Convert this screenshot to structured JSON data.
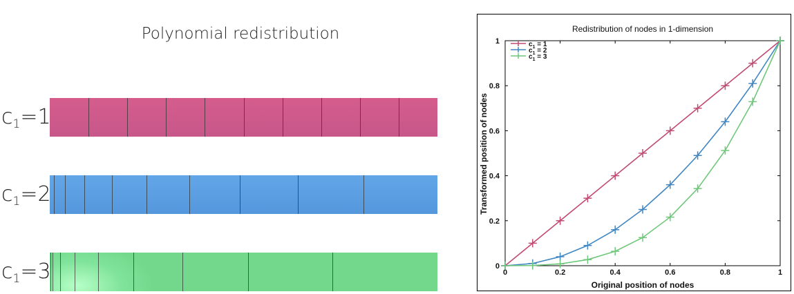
{
  "left": {
    "title": "Polynomial redistribution",
    "bars": [
      {
        "prefix": "c",
        "sub": "1",
        "suffix": "=1",
        "color": "#cb5a8b",
        "positions": [
          0,
          0.1,
          0.2,
          0.3,
          0.4,
          0.5,
          0.6,
          0.7,
          0.8,
          0.9,
          1
        ]
      },
      {
        "prefix": "c",
        "sub": "1",
        "suffix": "=2",
        "color": "#5b9fe2",
        "positions": [
          0,
          0.01,
          0.04,
          0.09,
          0.16,
          0.25,
          0.36,
          0.49,
          0.64,
          0.81,
          1
        ]
      },
      {
        "prefix": "c",
        "sub": "1",
        "suffix": "=3",
        "color": "#7ddf96",
        "positions": [
          0,
          0.001,
          0.008,
          0.027,
          0.064,
          0.125,
          0.216,
          0.343,
          0.512,
          0.729,
          1
        ]
      }
    ]
  },
  "chart_data": {
    "type": "line",
    "title": "Redistribution of nodes in 1-dimension",
    "xlabel": "Original position of  nodes",
    "ylabel": "Transformed position of nodes",
    "xlim": [
      0,
      1
    ],
    "ylim": [
      0,
      1
    ],
    "xticks": [
      "0",
      "0.2",
      "0.4",
      "0.6",
      "0.8",
      "1"
    ],
    "yticks": [
      "0",
      "0.2",
      "0.4",
      "0.6",
      "0.8",
      "1"
    ],
    "legend_position": "top-left",
    "grid": false,
    "x": [
      0,
      0.1,
      0.2,
      0.3,
      0.4,
      0.5,
      0.6,
      0.7,
      0.8,
      0.9,
      1
    ],
    "series": [
      {
        "name": "c1 = 1",
        "legend_prefix": "c",
        "legend_sub": "1",
        "legend_suffix": " = 1",
        "color": "#c04a73",
        "values": [
          0,
          0.1,
          0.2,
          0.3,
          0.4,
          0.5,
          0.6,
          0.7,
          0.8,
          0.9,
          1
        ]
      },
      {
        "name": "c1 = 2",
        "legend_prefix": "c",
        "legend_sub": "1",
        "legend_suffix": " = 2",
        "color": "#3f86c2",
        "values": [
          0,
          0.01,
          0.04,
          0.09,
          0.16,
          0.25,
          0.36,
          0.49,
          0.64,
          0.81,
          1
        ]
      },
      {
        "name": "c1 = 3",
        "legend_prefix": "c",
        "legend_sub": "1",
        "legend_suffix": " = 3",
        "color": "#6fc77a",
        "values": [
          0,
          0.001,
          0.008,
          0.027,
          0.064,
          0.125,
          0.216,
          0.343,
          0.512,
          0.729,
          1
        ]
      }
    ]
  }
}
